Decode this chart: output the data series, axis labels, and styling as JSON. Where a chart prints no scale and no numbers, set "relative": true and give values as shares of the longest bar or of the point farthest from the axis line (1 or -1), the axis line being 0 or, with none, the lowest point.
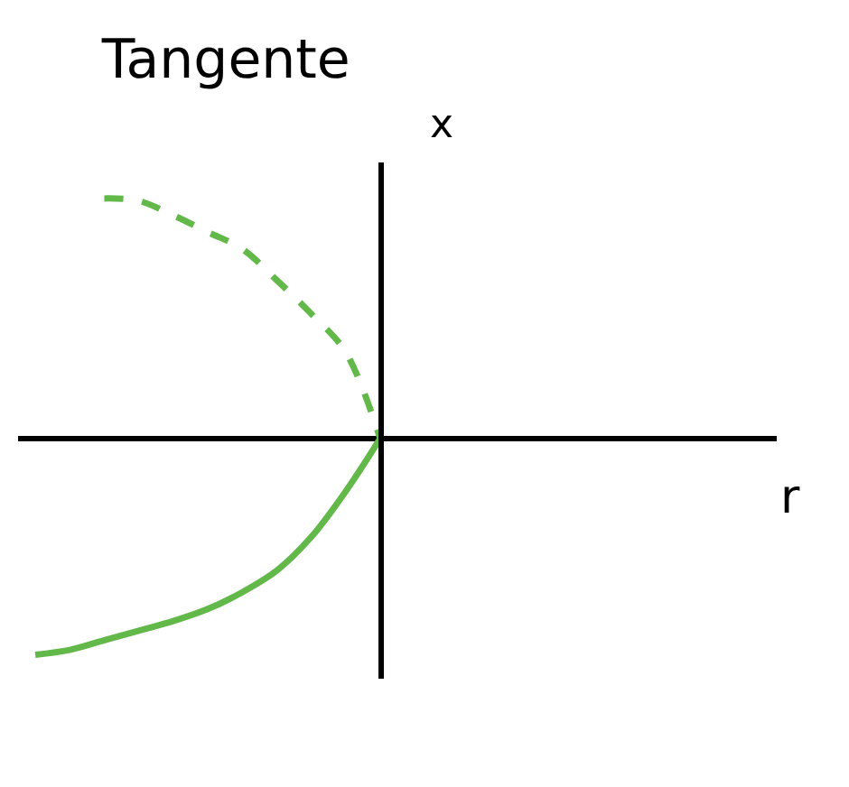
{
  "chart_data": {
    "type": "line",
    "title": "Tangente",
    "xlabel": "r",
    "ylabel": "x",
    "relative": true,
    "marker": "none",
    "categories": [
      null,
      null,
      null,
      null,
      null,
      null,
      null,
      null,
      null,
      null,
      null,
      null,
      null,
      null,
      null,
      null,
      null,
      null,
      null,
      null,
      null,
      null
    ],
    "series": [
      {
        "color": "#62b94a",
        "line_style": "solid",
        "values": [
          -0.9,
          -0.88,
          -0.84,
          -0.8,
          -0.76,
          -0.71,
          -0.64,
          -0.55,
          -0.41,
          -0.22,
          0,
          null,
          null,
          null,
          null,
          null,
          null,
          null,
          null,
          null,
          null,
          null
        ]
      },
      {
        "color": "#62b94a",
        "line_style": "dashed",
        "values": [
          null,
          null,
          1.0,
          0.99,
          0.93,
          0.86,
          0.79,
          0.66,
          0.52,
          0.36,
          0,
          null,
          null,
          null,
          null,
          null,
          null,
          null,
          null,
          null,
          null,
          null
        ]
      }
    ]
  }
}
